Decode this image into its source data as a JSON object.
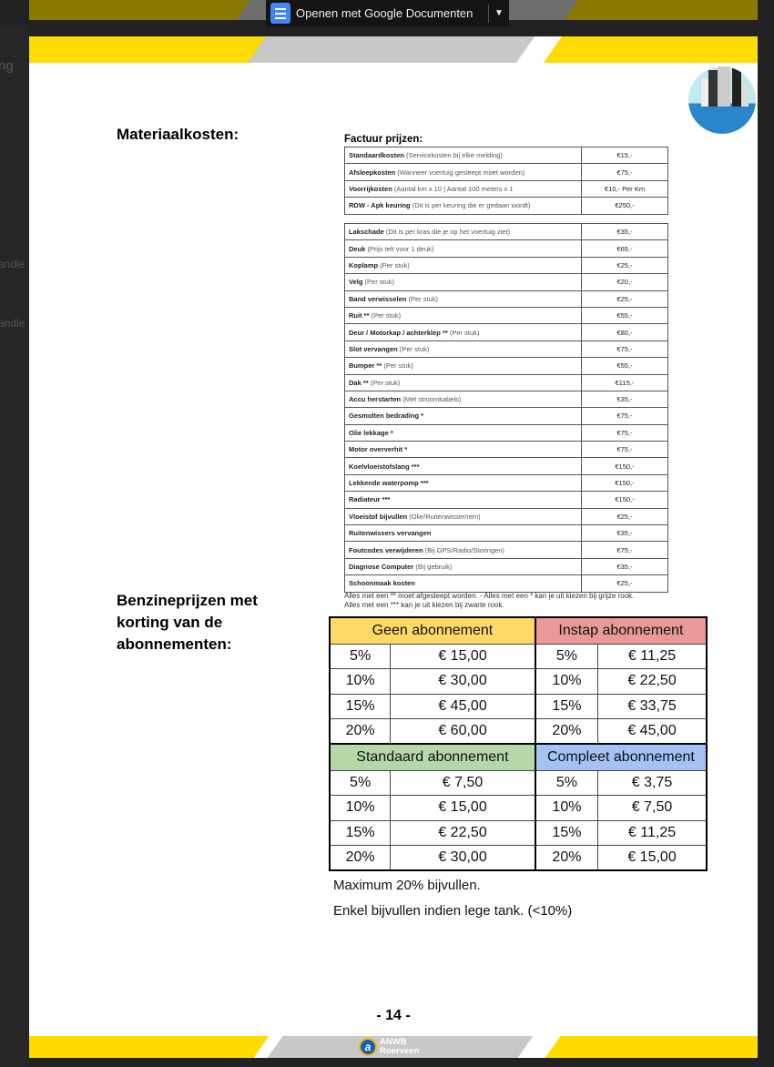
{
  "background": {
    "left_texts": [
      "ng",
      "andle",
      "andle"
    ]
  },
  "toolbar": {
    "open_with_label": "Openen met Google Documenten",
    "icon": "google-docs-icon",
    "dropdown_icon": "caret-down-icon"
  },
  "colors": {
    "yellow": "#ffdc00",
    "geen": "#ffd966",
    "instap": "#ea9999",
    "standaard": "#b6d7a8",
    "compleet": "#a4c2f4"
  },
  "sections": {
    "materiaal": "Materiaalkosten:",
    "benzine": "Benzineprijzen met korting van de abonnementen:"
  },
  "factuur": {
    "title": "Factuur prijzen:",
    "table1": [
      {
        "name": "Standaardkosten",
        "desc": "(Servicekosten bij elke melding)",
        "price": "€15,-"
      },
      {
        "name": "Afsleepkosten",
        "desc": "(Wanneer voertuig gesleept moet worden)",
        "price": "€75,-"
      },
      {
        "name": "Voorrijkosten",
        "desc": "(Aantal km x 10 | Aantal 100 meters x 1",
        "price": "€10,- Per Km"
      },
      {
        "name": "RDW - Apk keuring",
        "desc": "(Dit is per keuring die er gedaan wordt)",
        "price": "€250,-"
      }
    ],
    "table2": [
      {
        "name": "Lakschade",
        "desc": "(Dit is per kras die je op het voertuig ziet)",
        "price": "€35,-"
      },
      {
        "name": "Deuk",
        "desc": "(Prijs telt voor 1 deuk)",
        "price": "€65,-"
      },
      {
        "name": "Koplamp",
        "desc": "(Per stuk)",
        "price": "€25,-"
      },
      {
        "name": "Velg",
        "desc": "(Per stuk)",
        "price": "€20,-"
      },
      {
        "name": "Band verwisselen",
        "desc": "(Per stuk)",
        "price": "€25,-"
      },
      {
        "name": "Ruit **",
        "desc": "(Per stuk)",
        "price": "€55,-"
      },
      {
        "name": "Deur / Motorkap / achterklep **",
        "desc": "(Per stuk)",
        "price": "€80,-"
      },
      {
        "name": "Slot vervangen",
        "desc": "(Per stuk)",
        "price": "€75,-"
      },
      {
        "name": "Bumper **",
        "desc": "(Per stuk)",
        "price": "€55,-"
      },
      {
        "name": "Dak **",
        "desc": "(Per stuk)",
        "price": "€115,-"
      },
      {
        "name": "Accu herstarten",
        "desc": "(Met stroomkabels)",
        "price": "€35,-"
      },
      {
        "name": "Gesmolten bedrading *",
        "desc": "",
        "price": "€75,-"
      },
      {
        "name": "Olie lekkage *",
        "desc": "",
        "price": "€75,-"
      },
      {
        "name": "Motor oververhit *",
        "desc": "",
        "price": "€75,-"
      },
      {
        "name": "Koelvloeistofslang ***",
        "desc": "",
        "price": "€150,-"
      },
      {
        "name": "Lekkende waterpomp ***",
        "desc": "",
        "price": "€150,-"
      },
      {
        "name": "Radiateur ***",
        "desc": "",
        "price": "€150,-"
      },
      {
        "name": "Vloeistof bijvullen",
        "desc": "(Olie/Ruitenwisser/rem)",
        "price": "€25,-"
      },
      {
        "name": "Ruitenwissers vervangen",
        "desc": "",
        "price": "€35,-"
      },
      {
        "name": "Foutcodes verwijderen",
        "desc": "(Bij GPS/Radio/Storingen)",
        "price": "€75,-"
      },
      {
        "name": "Diagnose Computer",
        "desc": "(Bij gebruik)",
        "price": "€35,-"
      },
      {
        "name": "Schoonmaak kosten",
        "desc": "",
        "price": "€25,-"
      }
    ],
    "notes": [
      "Alles met een ** moet afgesleept worden. - Alles met een * kan je uit kiezen bij grijze rook.",
      "Alles met een *** kan je uit kiezen bij zwarte rook."
    ]
  },
  "benzine": {
    "blocks": [
      {
        "left": {
          "title": "Geen abonnement",
          "rows": [
            [
              "5%",
              "€ 15,00"
            ],
            [
              "10%",
              "€ 30,00"
            ],
            [
              "15%",
              "€ 45,00"
            ],
            [
              "20%",
              "€ 60,00"
            ]
          ]
        },
        "right": {
          "title": "Instap abonnement",
          "rows": [
            [
              "5%",
              "€ 11,25"
            ],
            [
              "10%",
              "€ 22,50"
            ],
            [
              "15%",
              "€ 33,75"
            ],
            [
              "20%",
              "€ 45,00"
            ]
          ]
        }
      },
      {
        "left": {
          "title": "Standaard abonnement",
          "rows": [
            [
              "5%",
              "€ 7,50"
            ],
            [
              "10%",
              "€ 15,00"
            ],
            [
              "15%",
              "€ 22,50"
            ],
            [
              "20%",
              "€ 30,00"
            ]
          ]
        },
        "right": {
          "title": "Compleet abonnement",
          "rows": [
            [
              "5%",
              "€ 3,75"
            ],
            [
              "10%",
              "€ 7,50"
            ],
            [
              "15%",
              "€ 11,25"
            ],
            [
              "20%",
              "€ 15,00"
            ]
          ]
        }
      }
    ],
    "note1": "Maximum 20% bijvullen.",
    "note2": "Enkel bijvullen indien lege tank. (<10%)"
  },
  "footer": {
    "page_number": "- 14 -",
    "logo_line1": "ANWB",
    "logo_line2": "Roerveen"
  }
}
